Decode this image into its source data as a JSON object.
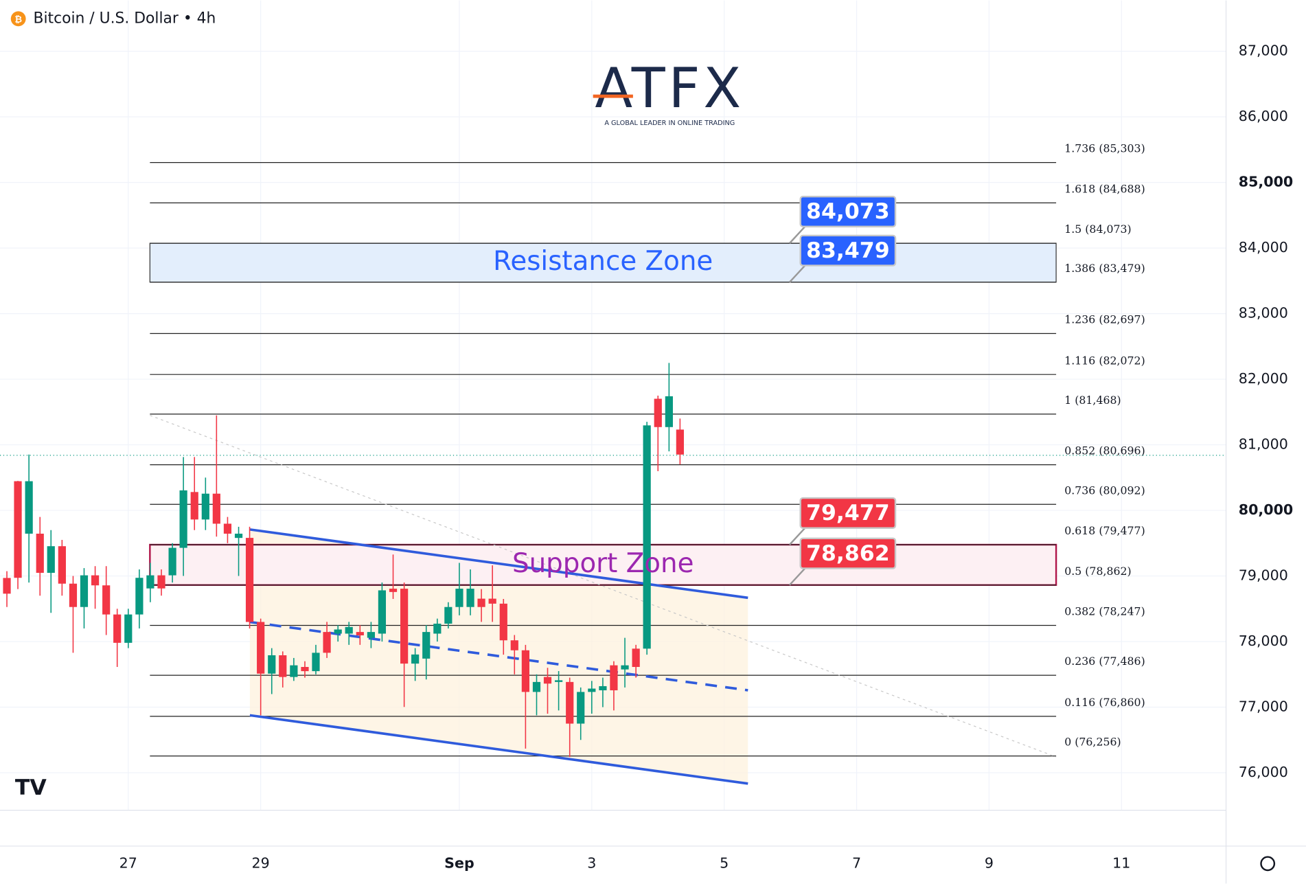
{
  "chart_data": {
    "type": "candlestick",
    "title": "Bitcoin / U.S. Dollar • 4h",
    "x": [
      25.167,
      25.333,
      25.5,
      25.667,
      25.833,
      26,
      26.167,
      26.333,
      26.5,
      26.667,
      26.833,
      27,
      27.167,
      27.333,
      27.5,
      27.667,
      27.833,
      28,
      28.167,
      28.333,
      28.5,
      28.667,
      28.833,
      29,
      29.167,
      29.333,
      29.5,
      29.667,
      29.833,
      30,
      30.167,
      30.333,
      30.5,
      30.667,
      30.833,
      31,
      31.167,
      31.333,
      31.5,
      31.667,
      31.833,
      32,
      32.167,
      32.333,
      32.5,
      32.667,
      32.833,
      33,
      33.167,
      33.333,
      33.5,
      33.667,
      33.833,
      34,
      34.167,
      34.333,
      34.5,
      34.667,
      34.833,
      35,
      35.167,
      35.333
    ],
    "open": [
      78970,
      80445,
      79645,
      79645,
      79048,
      79454,
      78883,
      78527,
      79010,
      78857,
      78413,
      77981,
      78413,
      78810,
      79010,
      79010,
      79429,
      80280,
      79861,
      80255,
      79797,
      79580,
      79581,
      78299,
      77511,
      77791,
      77460,
      77613,
      77549,
      78146,
      78121,
      78121,
      78146,
      78057,
      78121,
      78806,
      78806,
      77664,
      77740,
      78121,
      78273,
      78527,
      78527,
      78654,
      78654,
      78578,
      78019,
      77867,
      77232,
      77460,
      77384,
      77384,
      76749,
      77232,
      77257,
      77638,
      77575,
      77892,
      77892,
      81702,
      81270,
      81232
    ],
    "high": [
      79073,
      80450,
      80851,
      79900,
      79700,
      79550,
      79000,
      79120,
      79150,
      79150,
      78500,
      78500,
      79100,
      79200,
      79100,
      79500,
      80813,
      80813,
      80500,
      81448,
      79900,
      79750,
      79750,
      78350,
      77900,
      77850,
      77750,
      77700,
      77950,
      78300,
      78250,
      78300,
      78250,
      78300,
      78900,
      79327,
      78900,
      77900,
      78250,
      78350,
      78600,
      79200,
      79100,
      78800,
      79162,
      78650,
      78100,
      77950,
      77500,
      77600,
      77550,
      77450,
      77300,
      77400,
      77450,
      77700,
      78057,
      77950,
      81350,
      81750,
      82248,
      81400
    ],
    "low": [
      78527,
      78800,
      78900,
      78700,
      78438,
      78700,
      77829,
      78200,
      78500,
      78100,
      77613,
      77900,
      78200,
      78600,
      78700,
      78900,
      79000,
      79700,
      79700,
      79600,
      79500,
      79000,
      78200,
      76876,
      77200,
      77300,
      77400,
      77450,
      77500,
      77750,
      78000,
      77950,
      77950,
      77900,
      78000,
      78650,
      77003,
      77400,
      77422,
      78000,
      78200,
      78400,
      78400,
      78300,
      78300,
      77800,
      77500,
      76368,
      76876,
      76900,
      76950,
      76241,
      76500,
      76900,
      77000,
      76950,
      77300,
      77450,
      77800,
      80597,
      80900,
      80700
    ],
    "close": [
      78730,
      78972,
      80445,
      79048,
      79454,
      78883,
      78527,
      79010,
      78857,
      78413,
      77981,
      78413,
      78972,
      79010,
      78810,
      79429,
      80305,
      79861,
      80255,
      79797,
      79645,
      79645,
      78299,
      77511,
      77791,
      77460,
      77638,
      77549,
      77829,
      77829,
      78184,
      78222,
      78095,
      78146,
      78781,
      78756,
      77664,
      77803,
      78146,
      78273,
      78527,
      78806,
      78806,
      78527,
      78578,
      78019,
      77867,
      77232,
      77384,
      77359,
      77410,
      76749,
      77232,
      77283,
      77320,
      77257,
      77638,
      77613,
      81296,
      81270,
      81740,
      80851
    ],
    "up_color": "#089981",
    "down_color": "#f23645",
    "xlim": [
      25.063,
      43.579
    ],
    "ylim": [
      75428,
      87775
    ],
    "xticks": [
      27,
      29,
      {
        "value": 32,
        "label": "Sep"
      },
      {
        "value": 34,
        "label": "3"
      },
      {
        "value": 36,
        "label": "5"
      },
      {
        "value": 38,
        "label": "7"
      },
      {
        "value": 40,
        "label": "9"
      },
      {
        "value": 42,
        "label": "11"
      }
    ],
    "yticks": [
      {
        "value": 76000,
        "label": "76,000"
      },
      {
        "value": 77000,
        "label": "77,000"
      },
      {
        "value": 78000,
        "label": "78,000"
      },
      {
        "value": 79000,
        "label": "79,000"
      },
      {
        "value": 80000,
        "label": "80,000"
      },
      {
        "value": 81000,
        "label": "81,000"
      },
      {
        "value": 82000,
        "label": "82,000"
      },
      {
        "value": 83000,
        "label": "83,000"
      },
      {
        "value": 84000,
        "label": "84,000"
      },
      {
        "value": 85000,
        "label": "85,000"
      },
      {
        "value": 86000,
        "label": "86,000"
      },
      {
        "value": 87000,
        "label": "87,000"
      }
    ],
    "fib_levels": [
      {
        "value": 85303,
        "label": "1.736 (85,303)"
      },
      {
        "value": 84688,
        "label": "1.618 (84,688)"
      },
      {
        "value": 84073,
        "label": "1.5 (84,073)"
      },
      {
        "value": 83479,
        "label": "1.386 (83,479)"
      },
      {
        "value": 82697,
        "label": "1.236 (82,697)"
      },
      {
        "value": 82072,
        "label": "1.116 (82,072)"
      },
      {
        "value": 81468,
        "label": "1 (81,468)"
      },
      {
        "value": 80696,
        "label": "0.852 (80,696)"
      },
      {
        "value": 80092,
        "label": "0.736 (80,092)"
      },
      {
        "value": 79477,
        "label": "0.618 (79,477)"
      },
      {
        "value": 78862,
        "label": "0.5 (78,862)"
      },
      {
        "value": 78247,
        "label": "0.382 (78,247)"
      },
      {
        "value": 77486,
        "label": "0.236 (77,486)"
      },
      {
        "value": 76860,
        "label": "0.116 (76,860)"
      },
      {
        "value": 76256,
        "label": "0 (76,256)"
      }
    ],
    "zones": [
      {
        "label": "Resistance Zone",
        "low": 83479,
        "high": 84073,
        "color": "#2962ff",
        "fill": "#e3eefc",
        "stroke": "#333333"
      },
      {
        "label": "Support Zone",
        "low": 78862,
        "high": 79477,
        "color": "#9c27b0",
        "fill": "#fdf0f3",
        "stroke": "#b0154a"
      }
    ],
    "price_labels": [
      {
        "value": 84073,
        "label": "84,073",
        "color": "#2962ff"
      },
      {
        "value": 83479,
        "label": "83,479",
        "color": "#2962ff"
      },
      {
        "value": 79477,
        "label": "79,477",
        "color": "#f23645"
      },
      {
        "value": 78862,
        "label": "78,862",
        "color": "#f23645"
      }
    ]
  },
  "logo": {
    "text": "ATFX",
    "tagline": "A GLOBAL LEADER IN ONLINE TRADING"
  }
}
